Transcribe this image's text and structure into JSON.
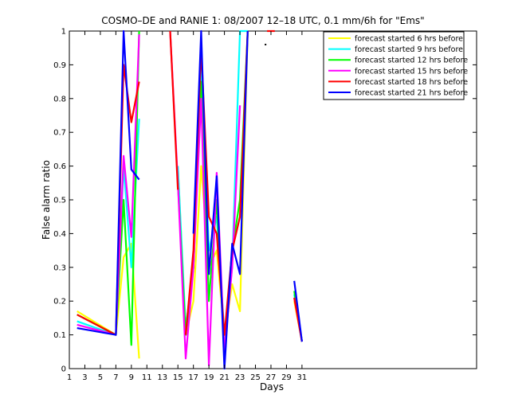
{
  "chart_data": {
    "type": "line",
    "title": "COSMO–DE and RANIE 1: 08/2007 12–18 UTC, 0.1 mm/6h for \"Ems\"",
    "xlabel": "Days",
    "ylabel": "False alarm ratio",
    "xlim": [
      1,
      31
    ],
    "ylim": [
      0,
      1
    ],
    "xticks": [
      "1",
      "3",
      "5",
      "7",
      "9",
      "11",
      "13",
      "15",
      "17",
      "19",
      "21",
      "23",
      "25",
      "27",
      "29",
      "31"
    ],
    "yticks": [
      "0",
      "0.1",
      "0.2",
      "0.3",
      "0.4",
      "0.5",
      "0.6",
      "0.7",
      "0.8",
      "0.9",
      "1"
    ],
    "grid": false,
    "legend_position": "top-right",
    "series": [
      {
        "name": "forecast started 6 hrs before",
        "color": "#ffff00",
        "points": [
          [
            2,
            0.17
          ],
          [
            7,
            0.1
          ],
          [
            8,
            0.33
          ],
          [
            9,
            0.37
          ],
          [
            10,
            0.03
          ],
          null,
          [
            15,
            0.6
          ],
          [
            16,
            0.1
          ],
          [
            17,
            0.2
          ],
          [
            18,
            0.6
          ],
          [
            19,
            0.3
          ],
          [
            20,
            0.35
          ],
          [
            21,
            0.1
          ],
          [
            22,
            0.25
          ],
          [
            23,
            0.17
          ],
          [
            24,
            1.0
          ],
          null,
          [
            30,
            0.2
          ],
          [
            31,
            0.08
          ]
        ]
      },
      {
        "name": "forecast started 9 hrs before",
        "color": "#00ffff",
        "points": [
          [
            2,
            0.14
          ],
          [
            7,
            0.1
          ],
          [
            8,
            0.6
          ],
          [
            9,
            0.3
          ],
          [
            10,
            0.74
          ],
          null,
          [
            15,
            0.6
          ],
          [
            16,
            0.12
          ],
          [
            17,
            0.3
          ],
          [
            18,
            0.9
          ],
          [
            19,
            0.35
          ],
          [
            20,
            0.45
          ],
          [
            21,
            0.1
          ],
          [
            22,
            0.3
          ],
          [
            23,
            1.0
          ],
          [
            24,
            1.0
          ],
          null,
          [
            30,
            0.22
          ],
          [
            31,
            0.08
          ]
        ]
      },
      {
        "name": "forecast started 12 hrs before",
        "color": "#00ff00",
        "points": [
          [
            2,
            0.16
          ],
          [
            7,
            0.1
          ],
          [
            8,
            0.5
          ],
          [
            9,
            0.07
          ],
          [
            10,
            1.0
          ],
          null,
          [
            15,
            0.55
          ],
          [
            16,
            0.1
          ],
          [
            17,
            0.3
          ],
          [
            18,
            0.85
          ],
          [
            19,
            0.2
          ],
          [
            20,
            0.5
          ],
          [
            21,
            0.05
          ],
          [
            22,
            0.35
          ],
          [
            23,
            0.5
          ],
          [
            24,
            1.0
          ],
          null,
          [
            30,
            0.23
          ],
          [
            31,
            0.08
          ]
        ]
      },
      {
        "name": "forecast started 15 hrs before",
        "color": "#ff00ff",
        "points": [
          [
            2,
            0.13
          ],
          [
            7,
            0.1
          ],
          [
            8,
            0.63
          ],
          [
            9,
            0.39
          ],
          [
            10,
            0.99
          ],
          null,
          [
            14,
            1.0
          ],
          [
            15,
            0.55
          ],
          [
            16,
            0.03
          ],
          [
            17,
            0.3
          ],
          [
            18,
            0.8
          ],
          [
            19,
            0.01
          ],
          [
            20,
            0.58
          ],
          [
            21,
            0.05
          ],
          [
            22,
            0.3
          ],
          [
            23,
            0.78
          ],
          null,
          [
            30,
            0.21
          ],
          [
            31,
            0.08
          ]
        ]
      },
      {
        "name": "forecast started 18 hrs before",
        "color": "#ff0000",
        "points": [
          [
            2,
            0.16
          ],
          [
            7,
            0.1
          ],
          [
            8,
            0.9
          ],
          [
            9,
            0.73
          ],
          [
            10,
            0.85
          ],
          null,
          [
            14,
            1.0
          ],
          [
            15,
            0.53
          ],
          null,
          [
            16,
            0.1
          ],
          [
            17,
            0.35
          ],
          [
            18,
            0.95
          ],
          [
            19,
            0.45
          ],
          [
            20,
            0.4
          ],
          [
            21,
            0.1
          ],
          [
            22,
            0.35
          ],
          [
            23,
            0.45
          ],
          [
            24,
            1.0
          ],
          null,
          [
            26.5,
            1.0
          ],
          [
            27.5,
            1.0
          ],
          null,
          [
            30,
            0.21
          ],
          [
            31,
            0.08
          ]
        ]
      },
      {
        "name": "forecast started 21 hrs before",
        "color": "#0000ff",
        "points": [
          [
            2,
            0.12
          ],
          [
            7,
            0.1
          ],
          [
            8,
            1.0
          ],
          [
            9,
            0.59
          ],
          [
            10,
            0.56
          ],
          null,
          [
            17,
            0.4
          ],
          [
            18,
            1.0
          ],
          [
            19,
            0.28
          ],
          [
            20,
            0.57
          ],
          [
            21,
            0.0
          ],
          [
            22,
            0.37
          ],
          [
            23,
            0.28
          ],
          [
            24,
            1.0
          ],
          null,
          [
            30,
            0.26
          ],
          [
            31,
            0.08
          ]
        ]
      }
    ],
    "extra_markers": [
      {
        "color": "#000000",
        "x": 26.3,
        "y": 0.96
      }
    ]
  }
}
